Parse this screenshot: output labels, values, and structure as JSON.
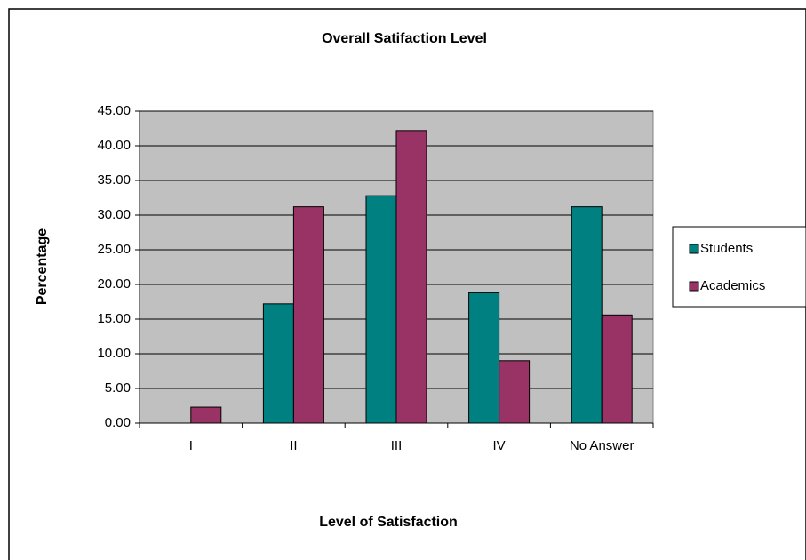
{
  "chart_data": {
    "type": "bar",
    "title": "Overall Satifaction Level",
    "xlabel": "Level of Satisfaction",
    "ylabel": "Percentage",
    "categories": [
      "I",
      "II",
      "III",
      "IV",
      "No Answer"
    ],
    "series": [
      {
        "name": "Students",
        "color": "#008080",
        "values": [
          0,
          17.2,
          32.8,
          18.8,
          31.2
        ]
      },
      {
        "name": "Academics",
        "color": "#993366",
        "values": [
          2.3,
          31.2,
          42.2,
          9.0,
          15.6
        ]
      }
    ],
    "ylim": [
      0,
      45
    ],
    "yticks": [
      {
        "value": 0,
        "label": "0.00"
      },
      {
        "value": 5,
        "label": "5.00"
      },
      {
        "value": 10,
        "label": "10.00"
      },
      {
        "value": 15,
        "label": "15.00"
      },
      {
        "value": 20,
        "label": "20.00"
      },
      {
        "value": 25,
        "label": "25.00"
      },
      {
        "value": 30,
        "label": "30.00"
      },
      {
        "value": 35,
        "label": "35.00"
      },
      {
        "value": 40,
        "label": "40.00"
      },
      {
        "value": 45,
        "label": "45.00"
      }
    ],
    "grid": true,
    "legend": "right"
  }
}
